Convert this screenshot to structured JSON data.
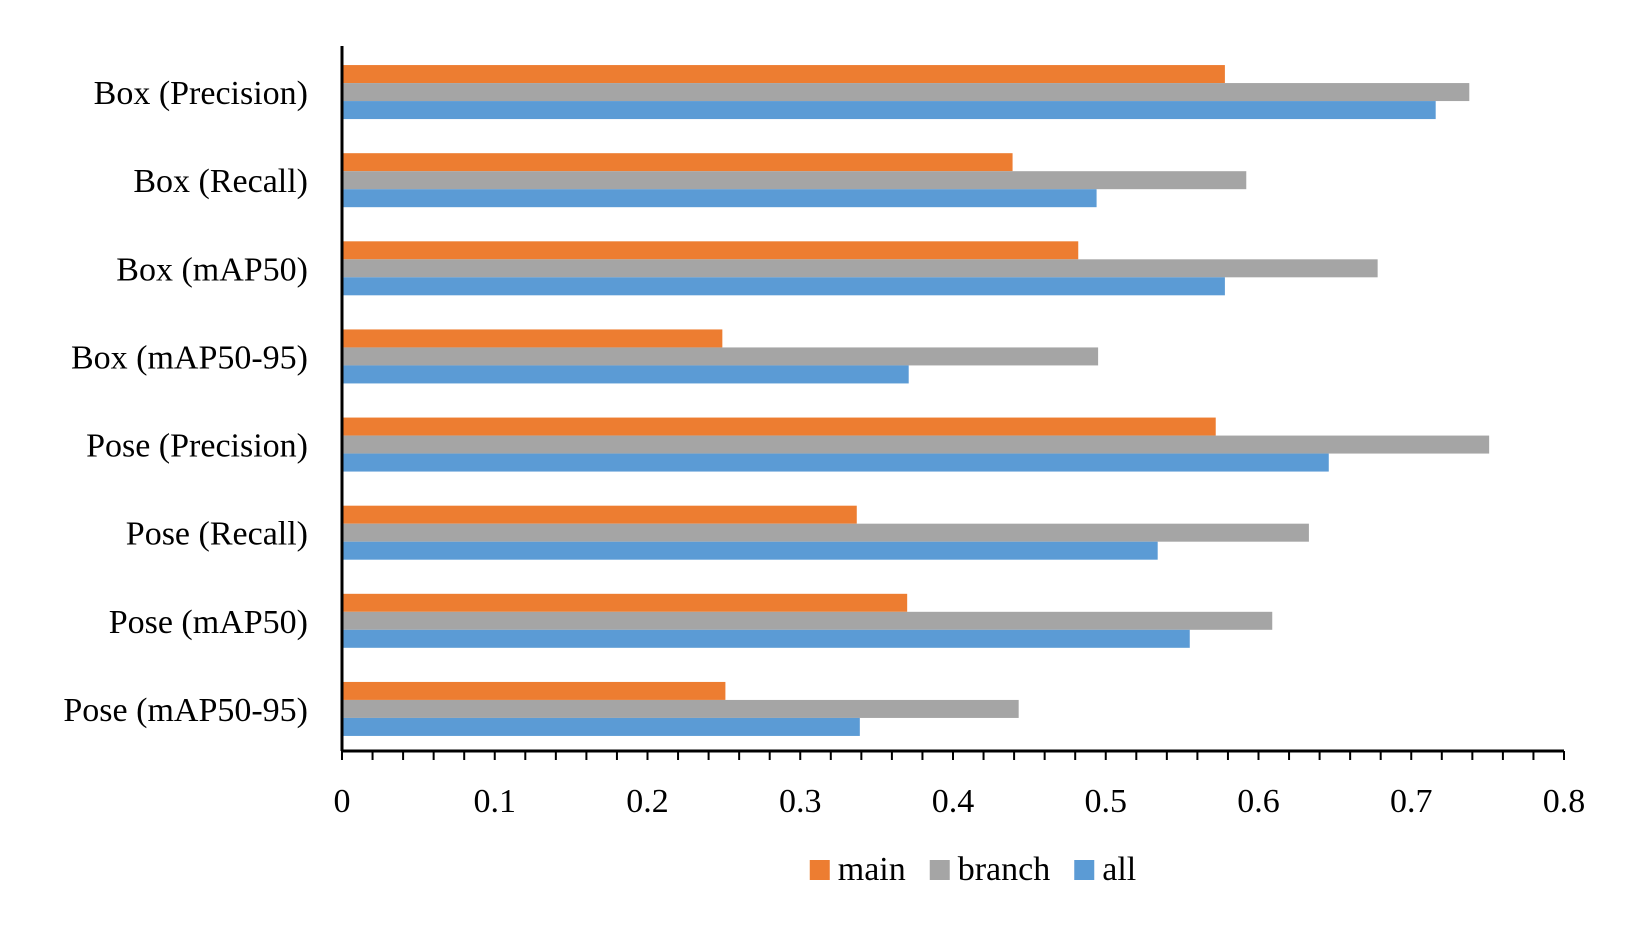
{
  "chart_data": {
    "type": "bar",
    "orientation": "horizontal",
    "categories": [
      "Box (Precision)",
      "Box (Recall)",
      "Box (mAP50)",
      "Box (mAP50-95)",
      "Pose (Precision)",
      "Pose (Recall)",
      "Pose (mAP50)",
      "Pose (mAP50-95)"
    ],
    "series": [
      {
        "name": "main",
        "color": "#ED7D31",
        "values": [
          0.578,
          0.439,
          0.482,
          0.249,
          0.572,
          0.337,
          0.37,
          0.251
        ]
      },
      {
        "name": "branch",
        "color": "#A5A5A5",
        "values": [
          0.738,
          0.592,
          0.678,
          0.495,
          0.751,
          0.633,
          0.609,
          0.443
        ]
      },
      {
        "name": "all",
        "color": "#5B9BD5",
        "values": [
          0.716,
          0.494,
          0.578,
          0.371,
          0.646,
          0.534,
          0.555,
          0.339
        ]
      }
    ],
    "xlim": [
      0,
      0.8
    ],
    "xticks": [
      "0",
      "0.1",
      "0.2",
      "0.3",
      "0.4",
      "0.5",
      "0.6",
      "0.7",
      "0.8"
    ],
    "minor_ticks_per_major": 5,
    "grid": false,
    "legend_position": "bottom",
    "title": "",
    "xlabel": "",
    "ylabel": ""
  }
}
